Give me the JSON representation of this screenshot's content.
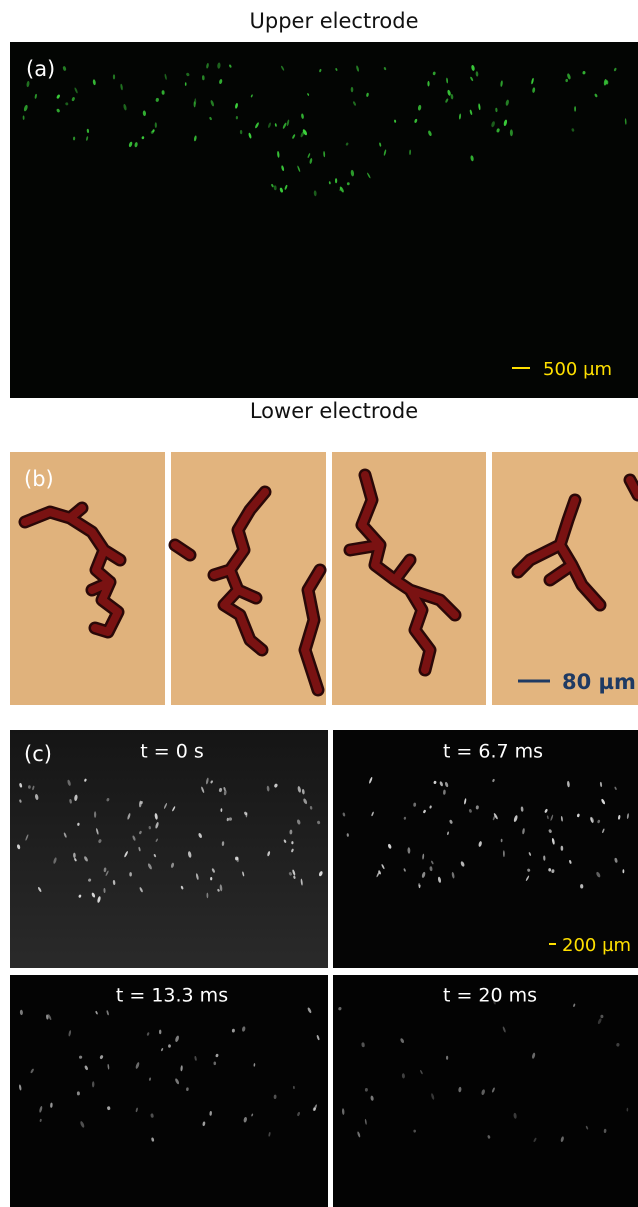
{
  "panel_a": {
    "title": "Upper electrode",
    "label": "(a)",
    "scale_bar": "500 µm",
    "footer": "Lower electrode"
  },
  "panel_b": {
    "label": "(b)",
    "scale_bar": "80 µm"
  },
  "panel_c": {
    "label": "(c)",
    "frames": [
      "t = 0 s",
      "t = 6.7 ms",
      "t = 13.3 ms",
      "t = 20 ms"
    ],
    "scale_bar": "200 µm"
  }
}
